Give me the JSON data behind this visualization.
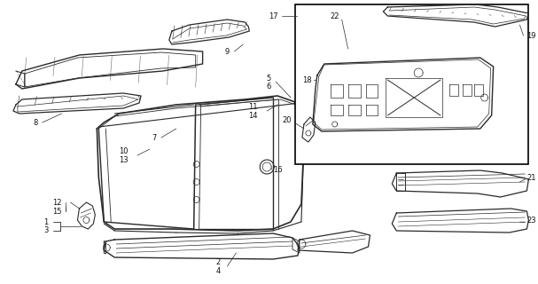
{
  "bg_color": "#ffffff",
  "line_color": "#2a2a2a",
  "label_color": "#111111",
  "fig_width": 6.07,
  "fig_height": 3.2,
  "dpi": 100,
  "label_fs": 6.0
}
